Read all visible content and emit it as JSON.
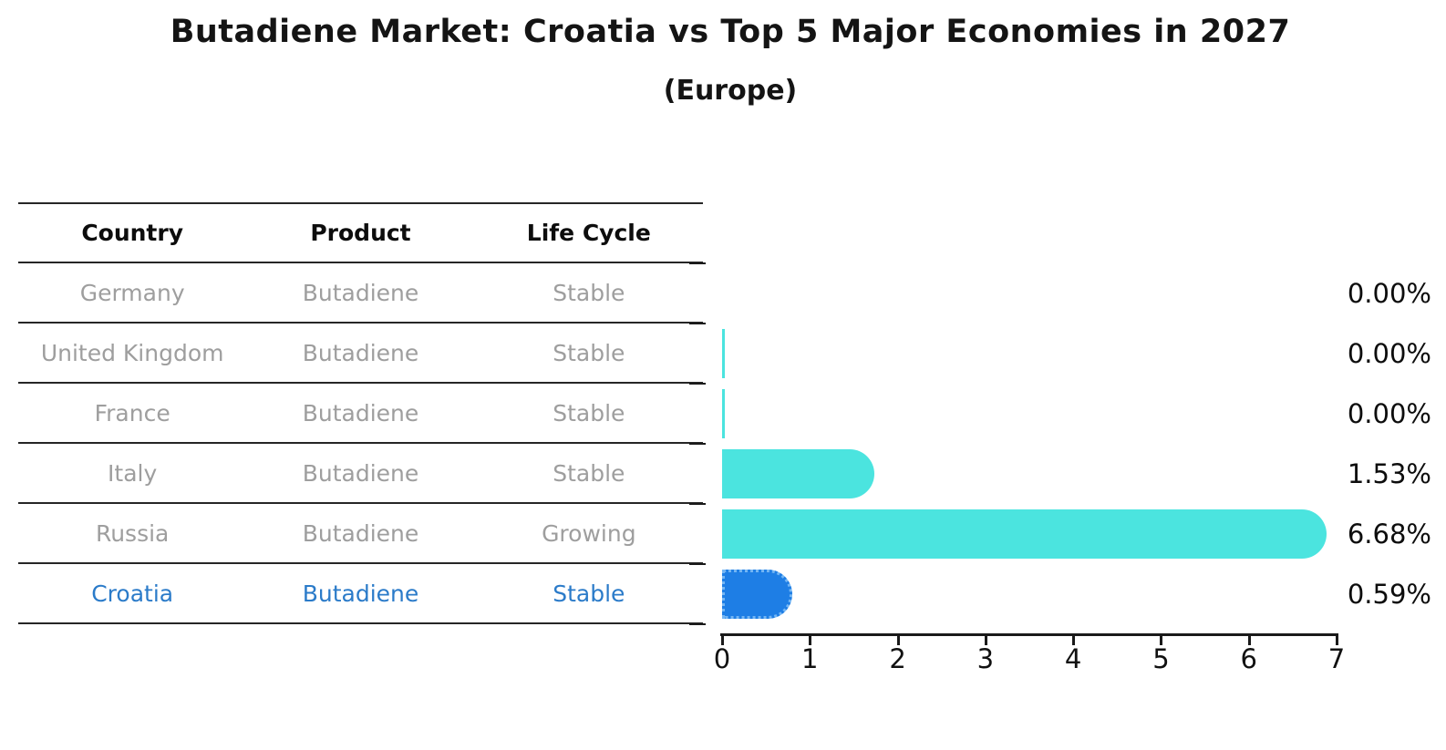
{
  "title": "Butadiene Market: Croatia vs Top 5 Major Economies in 2027",
  "subtitle": "(Europe)",
  "colors": {
    "bar_default": "#4be4df",
    "bar_highlight": "#1e7ee5",
    "bar_highlight_border": "#74b6f4",
    "highlight_text": "#2b7bc9",
    "muted_text": "#9e9e9e",
    "axis": "#1a1a1a"
  },
  "table": {
    "headers": [
      "Country",
      "Product",
      "Life Cycle"
    ],
    "rows": [
      {
        "country": "Germany",
        "product": "Butadiene",
        "life_cycle": "Stable",
        "highlight": false
      },
      {
        "country": "United Kingdom",
        "product": "Butadiene",
        "life_cycle": "Stable",
        "highlight": false
      },
      {
        "country": "France",
        "product": "Butadiene",
        "life_cycle": "Stable",
        "highlight": false
      },
      {
        "country": "Italy",
        "product": "Butadiene",
        "life_cycle": "Stable",
        "highlight": false
      },
      {
        "country": "Russia",
        "product": "Butadiene",
        "life_cycle": "Growing",
        "highlight": false
      },
      {
        "country": "Croatia",
        "product": "Butadiene",
        "life_cycle": "Stable",
        "highlight": true
      }
    ]
  },
  "chart_data": {
    "type": "bar",
    "orientation": "horizontal",
    "title": "Butadiene Market: Croatia vs Top 5 Major Economies in 2027",
    "subtitle": "(Europe)",
    "categories": [
      "Germany",
      "United Kingdom",
      "France",
      "Italy",
      "Russia",
      "Croatia"
    ],
    "values": [
      0.0,
      0.0,
      0.0,
      1.53,
      6.68,
      0.59
    ],
    "value_labels": [
      "0.00%",
      "0.00%",
      "0.00%",
      "1.53%",
      "6.68%",
      "0.59%"
    ],
    "value_suffix": "%",
    "highlight_index": 5,
    "hairline_bar_indices": [
      1,
      2
    ],
    "xlim": [
      0,
      7
    ],
    "x_ticks": [
      "0",
      "1",
      "2",
      "3",
      "4",
      "5",
      "6",
      "7"
    ],
    "grid": false,
    "legend": false
  }
}
